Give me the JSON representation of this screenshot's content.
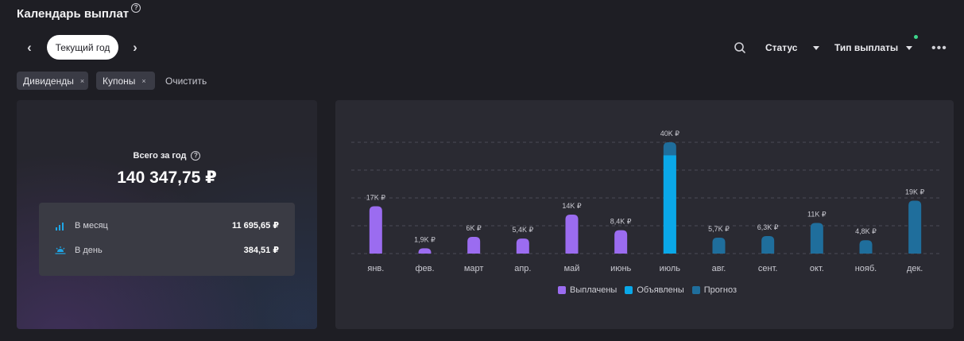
{
  "header": {
    "title": "Календарь выплат",
    "help_symbol": "?"
  },
  "period": {
    "prev_icon": "chevron-left-icon",
    "current": "Текущий год",
    "next_icon": "chevron-right-icon"
  },
  "toolbar": {
    "search_icon": "search-icon",
    "status_label": "Статус",
    "payout_type_label": "Тип выплаты",
    "more_icon": "more-horizontal-icon",
    "indicator_color": "#3ed68c"
  },
  "filters": {
    "chips": [
      {
        "label": "Дивиденды"
      },
      {
        "label": "Купоны"
      }
    ],
    "remove_symbol": "×",
    "clear_label": "Очистить"
  },
  "summary": {
    "total_label": "Всего за год",
    "total_value": "140 347,75 ₽",
    "rows": [
      {
        "label": "В месяц",
        "value": "11 695,65 ₽",
        "icon": "signal-bars-icon"
      },
      {
        "label": "В день",
        "value": "384,51 ₽",
        "icon": "sunrise-icon"
      }
    ]
  },
  "chart_data": {
    "type": "bar",
    "categories": [
      "янв.",
      "фев.",
      "март",
      "апр.",
      "май",
      "июнь",
      "июль",
      "авг.",
      "сент.",
      "окт.",
      "нояб.",
      "дек."
    ],
    "values": [
      17000,
      1900,
      6000,
      5400,
      14000,
      8400,
      40000,
      5700,
      6300,
      11000,
      4800,
      19000
    ],
    "declared_values": [
      0,
      0,
      0,
      0,
      0,
      0,
      35300,
      0,
      0,
      0,
      0,
      0
    ],
    "value_labels": [
      "17K ₽",
      "1,9K ₽",
      "6K ₽",
      "5,4K ₽",
      "14K ₽",
      "8,4K ₽",
      "40K ₽",
      "5,7K ₽",
      "6,3K ₽",
      "11K ₽",
      "4,8K ₽",
      "19K ₽"
    ],
    "bar_status": [
      "paid",
      "paid",
      "paid",
      "paid",
      "paid",
      "paid",
      "forecast",
      "forecast",
      "forecast",
      "forecast",
      "forecast",
      "forecast"
    ],
    "ylim": [
      0,
      40000
    ],
    "grid": true,
    "legend_position": "bottom",
    "series": [
      {
        "name": "Выплачены",
        "color": "#9b6cf0"
      },
      {
        "name": "Объявлены",
        "color": "#0aa8e8"
      },
      {
        "name": "Прогноз",
        "color": "#1f6e9c"
      }
    ]
  }
}
